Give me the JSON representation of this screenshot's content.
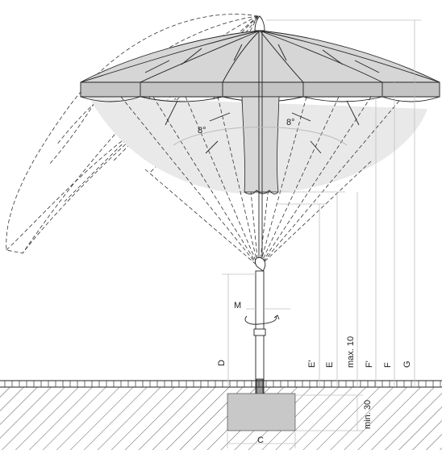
{
  "labels": {
    "angle_left": "8°",
    "angle_right": "8°",
    "M": "M",
    "D": "D",
    "E1": "E'",
    "E": "E",
    "max10": "max. 10",
    "F1": "F'",
    "F": "F",
    "G": "G",
    "min30": "min. 30",
    "C": "C"
  },
  "colors": {
    "canopy_fill": "#d6d6d6",
    "canopy_dark": "#bdbdbd",
    "tilted_fill": "#e4e4e4",
    "shadow_fill": "#e9e9e9",
    "foundation": "#c8c8c8",
    "dimension_line": "#bfbfbf",
    "ink": "#222222"
  }
}
